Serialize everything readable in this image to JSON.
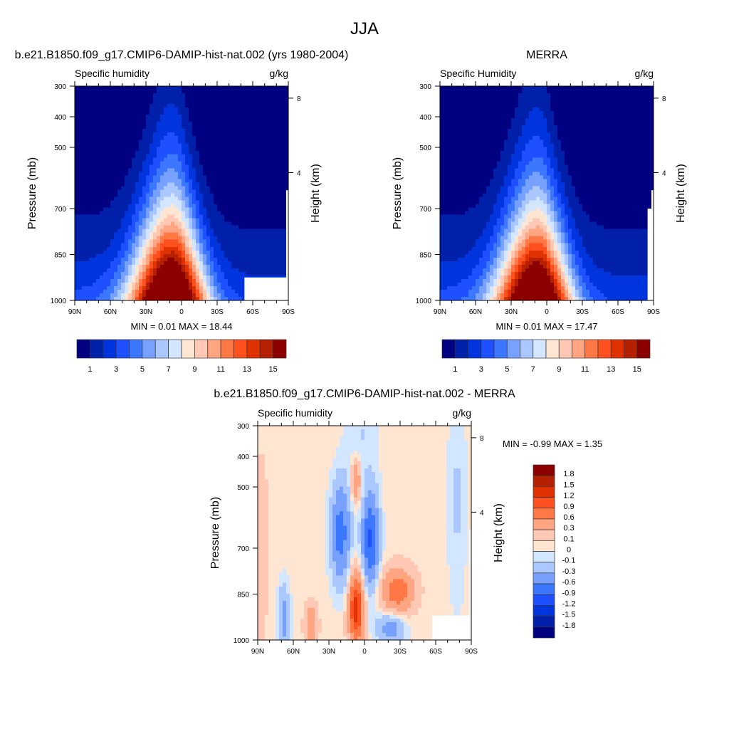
{
  "main_title": "JJA",
  "chart_data": [
    {
      "type": "heatmap",
      "title": "b.e21.B1850.f09_g17.CMIP6-DAMIP-hist-nat.002 (yrs 1980-2004)",
      "left_string": "Specific humidity",
      "right_string": "g/kg",
      "xlabel": "",
      "ylabel": "Pressure (mb)",
      "ylabel_right": "Height (km)",
      "x_ticks": [
        "90N",
        "60N",
        "30N",
        "0",
        "30S",
        "60S",
        "90S"
      ],
      "x_tick_values": [
        90,
        60,
        30,
        0,
        -30,
        -60,
        -90
      ],
      "y_ticks": [
        "300",
        "400",
        "500",
        "700",
        "850",
        "1000"
      ],
      "y_tick_values": [
        300,
        400,
        500,
        700,
        850,
        1000
      ],
      "y_right_ticks": [
        "8",
        "4"
      ],
      "y_right_tick_values": [
        8,
        4
      ],
      "xlim": [
        90,
        -90
      ],
      "ylim": [
        300,
        1000
      ],
      "stats": "MIN =   0.01  MAX =  18.44",
      "max_value": 18.44,
      "levels": [
        1,
        2,
        3,
        4,
        5,
        6,
        7,
        8,
        9,
        10,
        11,
        12,
        13,
        14,
        15
      ],
      "colorbar_labels": [
        "1",
        "3",
        "5",
        "7",
        "9",
        "11",
        "13",
        "15"
      ],
      "colorbar_label_values": [
        1,
        3,
        5,
        7,
        9,
        11,
        13,
        15
      ],
      "missing_region": {
        "lat_below": -53,
        "p_above": 925
      }
    },
    {
      "type": "heatmap",
      "title": "MERRA",
      "left_string": "Specific Humidity",
      "right_string": "g/kg",
      "xlabel": "",
      "ylabel": "Pressure (mb)",
      "ylabel_right": "Height (km)",
      "x_ticks": [
        "90N",
        "60N",
        "30N",
        "0",
        "30S",
        "60S",
        "90S"
      ],
      "x_tick_values": [
        90,
        60,
        30,
        0,
        -30,
        -60,
        -90
      ],
      "y_ticks": [
        "300",
        "400",
        "500",
        "700",
        "850",
        "1000"
      ],
      "y_tick_values": [
        300,
        400,
        500,
        700,
        850,
        1000
      ],
      "y_right_ticks": [
        "8",
        "4"
      ],
      "y_right_tick_values": [
        8,
        4
      ],
      "xlim": [
        90,
        -90
      ],
      "ylim": [
        300,
        1000
      ],
      "stats": "MIN =   0.01  MAX =  17.47",
      "max_value": 17.47,
      "levels": [
        1,
        2,
        3,
        4,
        5,
        6,
        7,
        8,
        9,
        10,
        11,
        12,
        13,
        14,
        15
      ],
      "colorbar_labels": [
        "1",
        "3",
        "5",
        "7",
        "9",
        "11",
        "13",
        "15"
      ],
      "colorbar_label_values": [
        1,
        3,
        5,
        7,
        9,
        11,
        13,
        15
      ],
      "missing_region": {
        "lat_below": -85,
        "p_above": 700
      }
    },
    {
      "type": "heatmap",
      "title": "b.e21.B1850.f09_g17.CMIP6-DAMIP-hist-nat.002 - MERRA",
      "left_string": "Specific humidity",
      "right_string": "g/kg",
      "xlabel": "",
      "ylabel": "Pressure (mb)",
      "ylabel_right": "Height (km)",
      "x_ticks": [
        "90N",
        "60N",
        "30N",
        "0",
        "30S",
        "60S",
        "90S"
      ],
      "x_tick_values": [
        90,
        60,
        30,
        0,
        -30,
        -60,
        -90
      ],
      "y_ticks": [
        "300",
        "400",
        "500",
        "700",
        "850",
        "1000"
      ],
      "y_tick_values": [
        300,
        400,
        500,
        700,
        850,
        1000
      ],
      "y_right_ticks": [
        "8",
        "4"
      ],
      "y_right_tick_values": [
        8,
        4
      ],
      "xlim": [
        90,
        -90
      ],
      "ylim": [
        300,
        1000
      ],
      "stats": "MIN =  -0.99  MAX =   1.35",
      "levels": [
        -1.8,
        -1.5,
        -1.2,
        -0.9,
        -0.6,
        -0.3,
        -0.1,
        0,
        0.1,
        0.3,
        0.6,
        0.9,
        1.2,
        1.5,
        1.8
      ],
      "colorbar_labels": [
        "1.8",
        "1.5",
        "1.2",
        "0.9",
        "0.6",
        "0.3",
        "0.1",
        "0",
        "-0.1",
        "-0.3",
        "-0.6",
        "-0.9",
        "-1.2",
        "-1.5",
        "-1.8"
      ],
      "colorbar_label_values": [
        1.8,
        1.5,
        1.2,
        0.9,
        0.6,
        0.3,
        0.1,
        0,
        -0.1,
        -0.3,
        -0.6,
        -0.9,
        -1.2,
        -1.5,
        -1.8
      ],
      "background": 0.05,
      "anomaly_features": [
        {
          "lat": 87,
          "p": 700,
          "amp": 0.25,
          "wlat": 5,
          "wp": 250
        },
        {
          "lat": 20,
          "p": 650,
          "amp": -0.8,
          "wlat": 8,
          "wp": 160
        },
        {
          "lat": -5,
          "p": 670,
          "amp": -1.0,
          "wlat": 7,
          "wp": 150
        },
        {
          "lat": 7,
          "p": 480,
          "amp": 0.55,
          "wlat": 4,
          "wp": 70
        },
        {
          "lat": 7,
          "p": 900,
          "amp": 1.3,
          "wlat": 6,
          "wp": 110
        },
        {
          "lat": -28,
          "p": 840,
          "amp": 0.8,
          "wlat": 13,
          "wp": 70
        },
        {
          "lat": -22,
          "p": 960,
          "amp": -0.5,
          "wlat": 12,
          "wp": 50
        },
        {
          "lat": 68,
          "p": 930,
          "amp": -0.45,
          "wlat": 5,
          "wp": 110
        },
        {
          "lat": 45,
          "p": 950,
          "amp": 0.55,
          "wlat": 5,
          "wp": 60
        },
        {
          "lat": -78,
          "p": 550,
          "amp": -0.17,
          "wlat": 8,
          "wp": 350
        },
        {
          "lat": 2,
          "p": 330,
          "amp": -0.15,
          "wlat": 14,
          "wp": 150
        }
      ],
      "missing_region": {
        "lat_below": -57,
        "p_above": 920
      }
    }
  ],
  "colors": {
    "full": [
      "#000080",
      "#0020aa",
      "#0034dc",
      "#1e50ff",
      "#3c78ff",
      "#78a0ff",
      "#aac8ff",
      "#d2e6ff",
      "#ffe6d2",
      "#ffc8b4",
      "#ffa582",
      "#ff7846",
      "#ff5020",
      "#e03200",
      "#b42000",
      "#8c0000"
    ],
    "diff": [
      "#000080",
      "#0020aa",
      "#0034dc",
      "#1e50ff",
      "#3c78ff",
      "#78a0ff",
      "#aac8ff",
      "#d2e6ff",
      "#ffe6d2",
      "#ffc8b4",
      "#ffa582",
      "#ff7846",
      "#ff5020",
      "#e03200",
      "#b42000",
      "#8c0000"
    ]
  }
}
